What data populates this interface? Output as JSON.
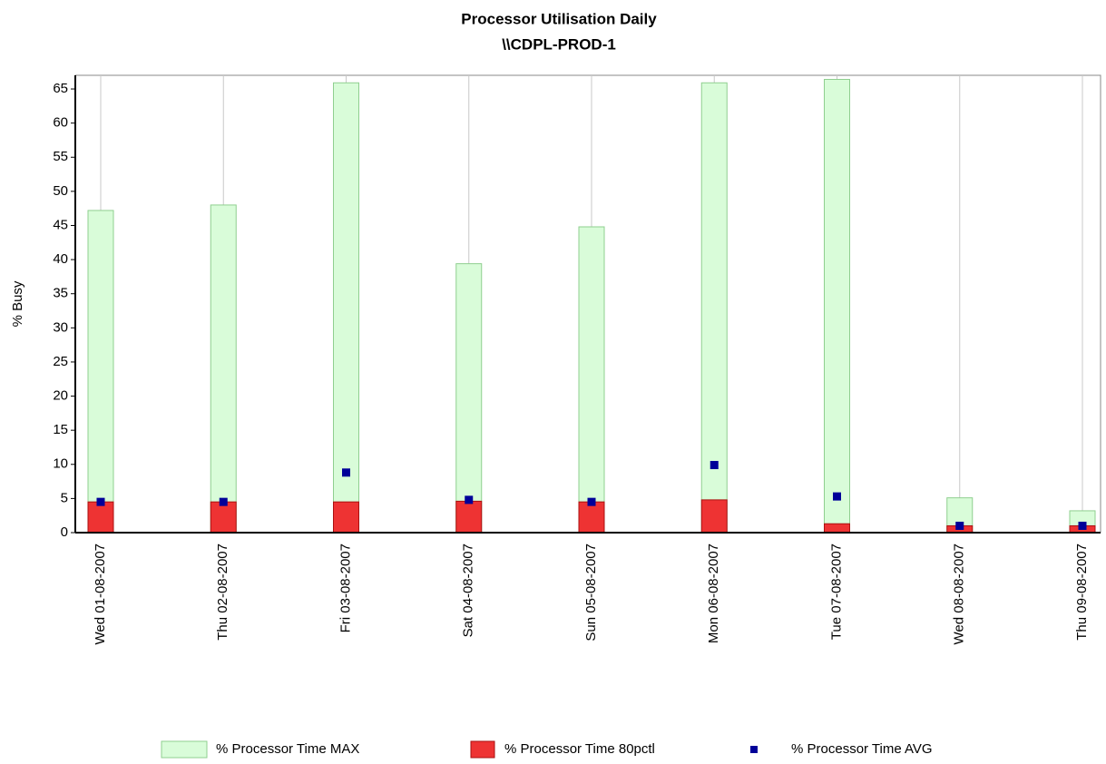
{
  "chart_data": {
    "type": "bar",
    "title": "Processor Utilisation Daily",
    "subtitle": "\\\\CDPL-PROD-1",
    "y_label": "% Busy",
    "categories": [
      "Wed 01-08-2007",
      "Thu 02-08-2007",
      "Fri 03-08-2007",
      "Sat 04-08-2007",
      "Sun 05-08-2007",
      "Mon 06-08-2007",
      "Tue 07-08-2007",
      "Wed 08-08-2007",
      "Thu 09-08-2007"
    ],
    "series": [
      {
        "name": "% Processor Time MAX",
        "color": "#d9fcd9",
        "values": [
          47.2,
          48,
          65.9,
          39.4,
          44.8,
          65.9,
          66.4,
          5.1,
          3.2
        ]
      },
      {
        "name": "% Processor Time 80pctl",
        "color": "#ee3333",
        "values": [
          4.5,
          4.5,
          4.5,
          4.6,
          4.5,
          4.8,
          1.3,
          1.0,
          1.0
        ]
      },
      {
        "name": "% Processor Time AVG",
        "color": "#000099",
        "values": [
          4.5,
          4.5,
          8.8,
          4.8,
          4.5,
          9.9,
          5.3,
          1.0,
          1.0
        ]
      }
    ],
    "ylim": [
      0,
      67
    ],
    "yticks": [
      0,
      5,
      10,
      15,
      20,
      25,
      30,
      35,
      40,
      45,
      50,
      55,
      60,
      65
    ],
    "grid": true
  }
}
